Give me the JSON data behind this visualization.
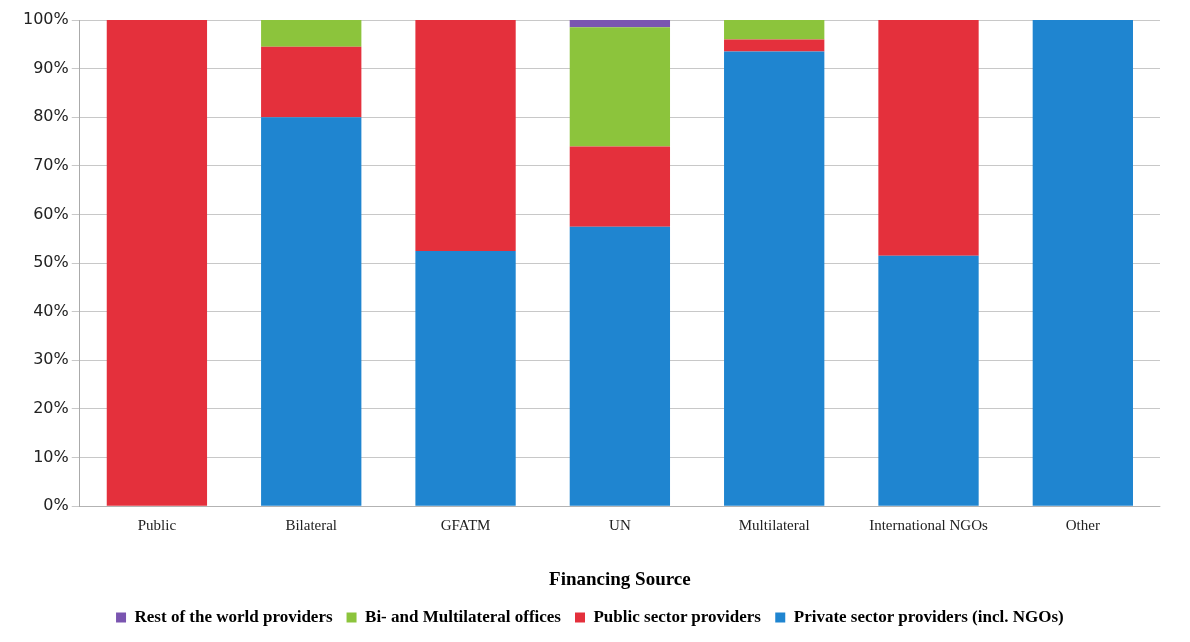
{
  "chart_data": {
    "type": "bar",
    "stacked": true,
    "xlabel": "Financing Source",
    "categories": [
      "Public",
      "Bilateral",
      "GFATM",
      "UN",
      "Multilateral",
      "International NGOs",
      "Other"
    ],
    "series": [
      {
        "name": "Private sector providers (incl. NGOs)",
        "color": "#1f85d0",
        "values": [
          0,
          80,
          52.5,
          57.5,
          93.5,
          51.5,
          100
        ]
      },
      {
        "name": "Public sector providers",
        "color": "#e4303c",
        "values": [
          100,
          14.5,
          47.5,
          16.5,
          2.5,
          48.5,
          0
        ]
      },
      {
        "name": "Bi- and Multilateral offices",
        "color": "#8cc43c",
        "values": [
          0,
          5.5,
          0,
          24.5,
          4,
          0,
          0
        ]
      },
      {
        "name": "Rest of the world providers",
        "color": "#7a55b0",
        "values": [
          0,
          0,
          0,
          1.5,
          0,
          0,
          0
        ]
      }
    ],
    "ylim": [
      0,
      100
    ],
    "yticks": [
      {
        "value": 0,
        "label": "0%"
      },
      {
        "value": 10,
        "label": "10%"
      },
      {
        "value": 20,
        "label": "20%"
      },
      {
        "value": 30,
        "label": "30%"
      },
      {
        "value": 40,
        "label": "40%"
      },
      {
        "value": 50,
        "label": "50%"
      },
      {
        "value": 60,
        "label": "60%"
      },
      {
        "value": 70,
        "label": "70%"
      },
      {
        "value": 80,
        "label": "80%"
      },
      {
        "value": 90,
        "label": "90%"
      },
      {
        "value": 100,
        "label": "100%"
      }
    ],
    "grid": "y",
    "legend": "bottom"
  }
}
